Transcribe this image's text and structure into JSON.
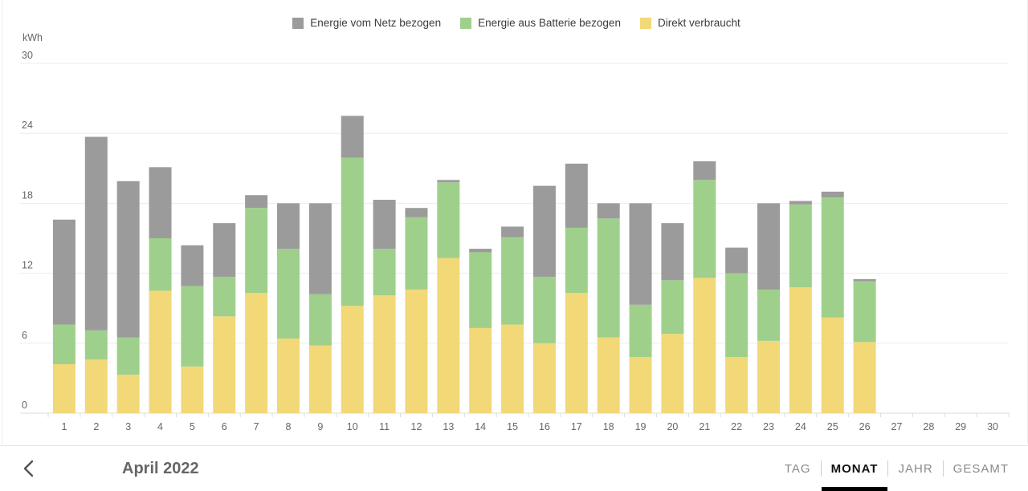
{
  "legend": {
    "grid": {
      "label": "Energie vom Netz bezogen",
      "color": "#9b9b9b"
    },
    "battery": {
      "label": "Energie aus Batterie bezogen",
      "color": "#9fd08b"
    },
    "direct": {
      "label": "Direkt verbraucht",
      "color": "#f3d878"
    }
  },
  "chart_data": {
    "type": "bar",
    "stacked": true,
    "ylabel": "kWh",
    "ylim": [
      0,
      30
    ],
    "yticks": [
      0,
      6,
      12,
      18,
      24,
      30
    ],
    "grid": true,
    "legend_position": "top-center",
    "categories": [
      "1",
      "2",
      "3",
      "4",
      "5",
      "6",
      "7",
      "8",
      "9",
      "10",
      "11",
      "12",
      "13",
      "14",
      "15",
      "16",
      "17",
      "18",
      "19",
      "20",
      "21",
      "22",
      "23",
      "24",
      "25",
      "26",
      "27",
      "28",
      "29",
      "30"
    ],
    "series": [
      {
        "name": "Direkt verbraucht",
        "color": "#f3d878",
        "values": [
          4.2,
          4.6,
          3.3,
          10.5,
          4.0,
          8.3,
          10.3,
          6.4,
          5.8,
          9.2,
          10.1,
          10.6,
          13.3,
          7.3,
          7.6,
          6.0,
          10.3,
          6.5,
          4.8,
          6.8,
          11.6,
          4.8,
          6.2,
          10.8,
          8.2,
          6.1,
          0,
          0,
          0,
          0
        ]
      },
      {
        "name": "Energie aus Batterie bezogen",
        "color": "#9fd08b",
        "values": [
          3.4,
          2.5,
          3.2,
          4.5,
          6.9,
          3.4,
          7.3,
          7.7,
          4.4,
          12.7,
          4.0,
          6.2,
          6.5,
          6.5,
          7.5,
          5.7,
          5.6,
          10.2,
          4.5,
          4.6,
          8.4,
          7.2,
          4.4,
          7.1,
          10.3,
          5.2,
          0,
          0,
          0,
          0
        ]
      },
      {
        "name": "Energie vom Netz bezogen",
        "color": "#9b9b9b",
        "values": [
          9.0,
          16.6,
          13.4,
          6.1,
          3.5,
          4.6,
          1.1,
          3.9,
          7.8,
          3.6,
          4.2,
          0.8,
          0.2,
          0.3,
          0.9,
          7.8,
          5.5,
          1.3,
          8.7,
          4.9,
          1.6,
          2.2,
          7.4,
          0.3,
          0.5,
          0.2,
          0,
          0,
          0,
          0
        ]
      }
    ]
  },
  "footer": {
    "title": "April 2022",
    "tabs": [
      "TAG",
      "MONAT",
      "JAHR",
      "GESAMT"
    ],
    "active_tab": "MONAT"
  }
}
